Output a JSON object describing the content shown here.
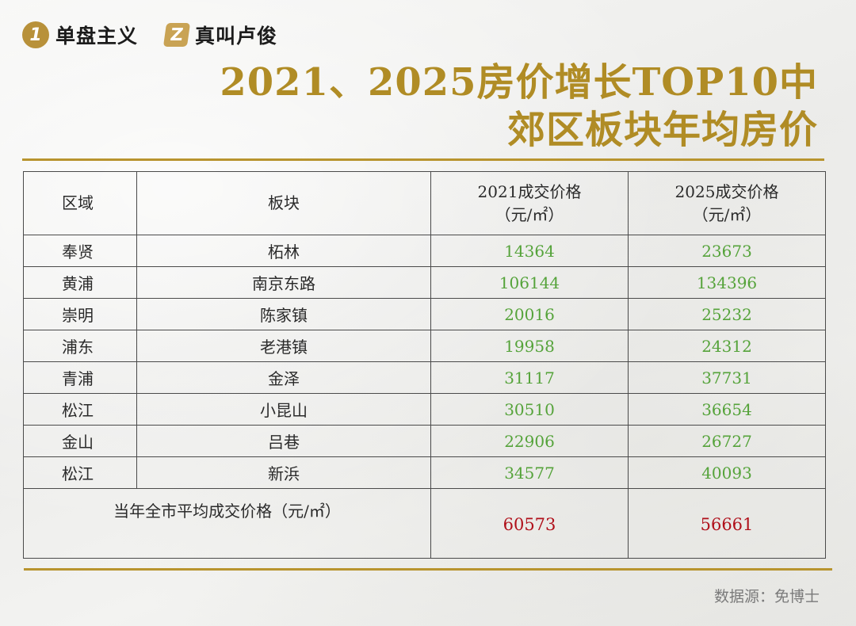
{
  "brand": {
    "logo1_glyph": "1",
    "logo1_text": "单盘主义",
    "logo2_glyph": "Z",
    "logo2_text": "真叫卢俊"
  },
  "title": {
    "line1": "2021、2025房价增长TOP10中",
    "line2": "郊区板块年均房价"
  },
  "table": {
    "headers": {
      "district": "区域",
      "block": "板块",
      "price2021_line1": "2021成交价格",
      "price2021_line2": "（元/㎡）",
      "price2025_line1": "2025成交价格",
      "price2025_line2": "（元/㎡）"
    },
    "rows": [
      {
        "district": "奉贤",
        "block": "柘林",
        "p2021": "14364",
        "p2025": "23673"
      },
      {
        "district": "黄浦",
        "block": "南京东路",
        "p2021": "106144",
        "p2025": "134396"
      },
      {
        "district": "崇明",
        "block": "陈家镇",
        "p2021": "20016",
        "p2025": "25232"
      },
      {
        "district": "浦东",
        "block": "老港镇",
        "p2021": "19958",
        "p2025": "24312"
      },
      {
        "district": "青浦",
        "block": "金泽",
        "p2021": "31117",
        "p2025": "37731"
      },
      {
        "district": "松江",
        "block": "小昆山",
        "p2021": "30510",
        "p2025": "36654"
      },
      {
        "district": "金山",
        "block": "吕巷",
        "p2021": "22906",
        "p2025": "26727"
      },
      {
        "district": "松江",
        "block": "新浜",
        "p2021": "34577",
        "p2025": "40093"
      }
    ],
    "total": {
      "label": "当年全市平均成交价格（元/㎡）",
      "p2021": "60573",
      "p2025": "56661"
    }
  },
  "source": "数据源：免博士",
  "colors": {
    "gold": "#b08c25",
    "green_values": "#55a33a",
    "red_totals": "#b0101a"
  }
}
